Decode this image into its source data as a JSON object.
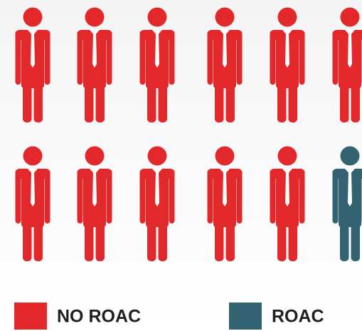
{
  "chart_data": {
    "type": "pictograph",
    "categories": [
      "NO ROAC",
      "ROAC"
    ],
    "values": [
      11,
      1
    ],
    "colors": [
      "#e2282b",
      "#336373"
    ]
  }
}
